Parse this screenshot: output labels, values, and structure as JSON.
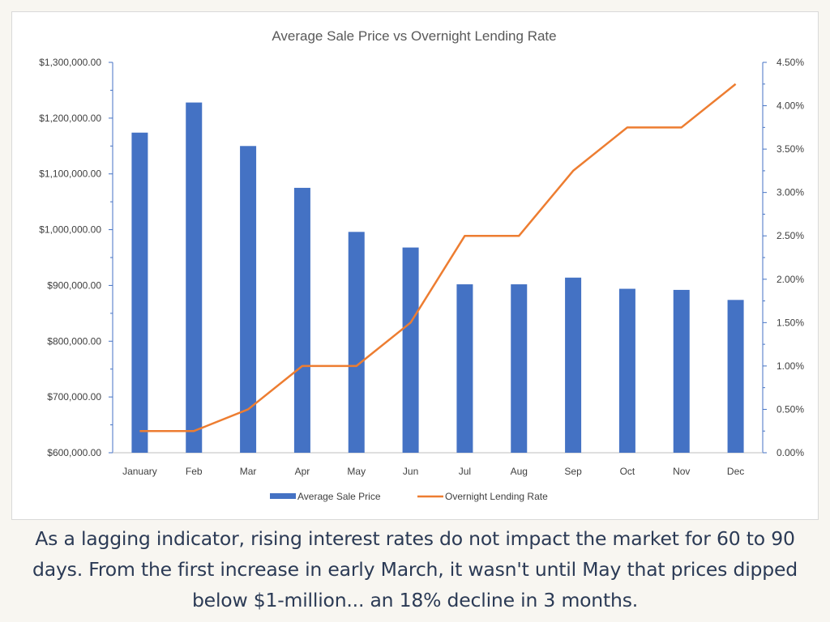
{
  "caption": "As a lagging indicator, rising interest rates do not impact the market for 60 to 90 days. From the first increase in early March, it wasn't until May that prices dipped below $1-million... an 18% decline in 3 months.",
  "colors": {
    "bar": "#4472c4",
    "line": "#ed7d31",
    "caption": "#2b3a55",
    "background": "#f8f6f1"
  },
  "chart_data": {
    "type": "bar",
    "title": "Average Sale Price vs Overnight Lending Rate",
    "categories": [
      "January",
      "Feb",
      "Mar",
      "Apr",
      "May",
      "Jun",
      "Jul",
      "Aug",
      "Sep",
      "Oct",
      "Nov",
      "Dec"
    ],
    "series": [
      {
        "name": "Average Sale Price",
        "type": "bar",
        "axis": "left",
        "values": [
          1174000,
          1228000,
          1150000,
          1075000,
          996000,
          968000,
          902000,
          902000,
          914000,
          894000,
          892000,
          874000
        ]
      },
      {
        "name": "Overnight Lending Rate",
        "type": "line",
        "axis": "right",
        "values": [
          0.25,
          0.25,
          0.5,
          1.0,
          1.0,
          1.5,
          2.5,
          2.5,
          3.25,
          3.75,
          3.75,
          4.25
        ]
      }
    ],
    "y_left": {
      "min": 600000,
      "max": 1300000,
      "step": 100000,
      "tick_labels": [
        "$600,000.00",
        "$700,000.00",
        "$800,000.00",
        "$900,000.00",
        "$1,000,000.00",
        "$1,100,000.00",
        "$1,200,000.00",
        "$1,300,000.00"
      ]
    },
    "y_right": {
      "min": 0,
      "max": 4.5,
      "step": 0.5,
      "tick_labels": [
        "0.00%",
        "0.50%",
        "1.00%",
        "1.50%",
        "2.00%",
        "2.50%",
        "3.00%",
        "3.50%",
        "4.00%",
        "4.50%"
      ]
    },
    "grid": false,
    "legend": "bottom"
  }
}
